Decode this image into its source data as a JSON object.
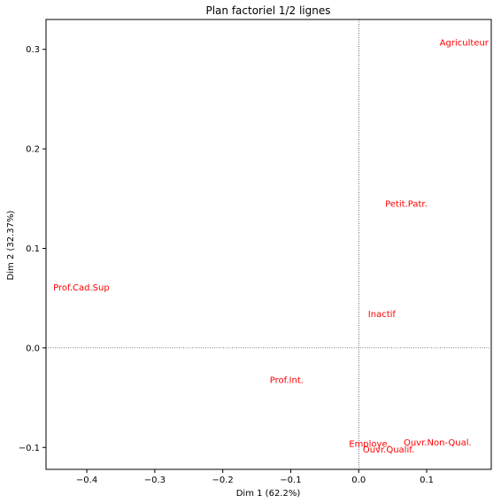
{
  "chart_data": {
    "type": "scatter",
    "title": "Plan factoriel 1/2 lignes",
    "xlabel": "Dim 1 (62.2%)",
    "ylabel": "Dim 2 (32.37%)",
    "xlim": [
      -0.46,
      0.195
    ],
    "ylim": [
      -0.122,
      0.33
    ],
    "xticks": [
      -0.4,
      -0.3,
      -0.2,
      -0.1,
      0.0,
      0.1
    ],
    "xtick_labels": [
      "−0.4",
      "−0.3",
      "−0.2",
      "−0.1",
      "0.0",
      "0.1"
    ],
    "yticks": [
      -0.1,
      0.0,
      0.1,
      0.2,
      0.3
    ],
    "ytick_labels": [
      "−0.1",
      "0.0",
      "0.1",
      "0.2",
      "0.3"
    ],
    "reference_lines": {
      "x": 0,
      "y": 0,
      "style": "dotted"
    },
    "label_color": "#ff0000",
    "points": [
      {
        "label": "Agriculteur",
        "x": 0.155,
        "y": 0.307
      },
      {
        "label": "Petit.Patr.",
        "x": 0.07,
        "y": 0.145
      },
      {
        "label": "Prof.Cad.Sup",
        "x": -0.408,
        "y": 0.061
      },
      {
        "label": "Inactif",
        "x": 0.034,
        "y": 0.034
      },
      {
        "label": "Prof.Int.",
        "x": -0.106,
        "y": -0.032
      },
      {
        "label": "Employe.",
        "x": 0.016,
        "y": -0.096
      },
      {
        "label": "Ouvr.Non-Qual.",
        "x": 0.116,
        "y": -0.095
      },
      {
        "label": "Ouvr.Qualif.",
        "x": 0.044,
        "y": -0.102
      }
    ]
  }
}
